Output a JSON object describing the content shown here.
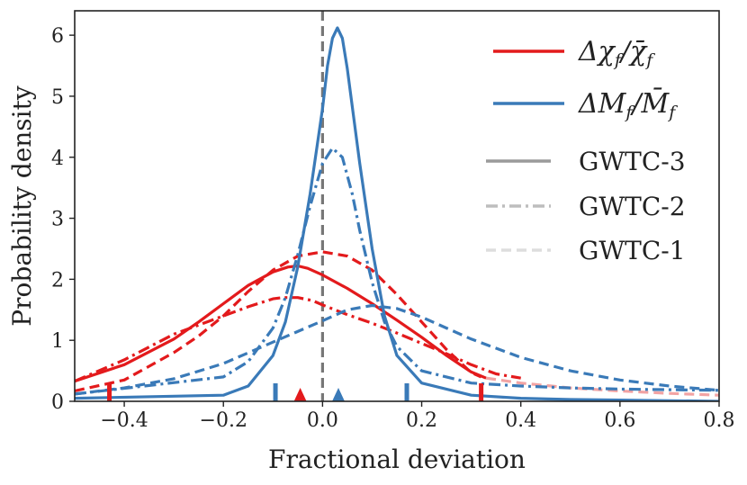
{
  "chart_data": {
    "type": "line",
    "xlabel": "Fractional deviation",
    "ylabel": "Probability density",
    "xlim": [
      -0.5,
      0.8
    ],
    "ylim": [
      0,
      6.4
    ],
    "x_ticks": [
      -0.4,
      -0.2,
      0.0,
      0.2,
      0.4,
      0.6,
      0.8
    ],
    "x_tick_labels": [
      "−0.4",
      "−0.2",
      "0.0",
      "0.2",
      "0.4",
      "0.6",
      "0.8"
    ],
    "y_ticks": [
      0,
      1,
      2,
      3,
      4,
      5,
      6
    ],
    "y_tick_labels": [
      "0",
      "1",
      "2",
      "3",
      "4",
      "5",
      "6"
    ],
    "reference_line_x": 0.0,
    "colors": {
      "chi": "#e31a1c",
      "mass": "#3a7ab8",
      "chi_faded": "#f2a3a3",
      "mass_faded": "#a9c8e2",
      "reference": "#777777"
    },
    "series": [
      {
        "name": "chi_f GWTC-3",
        "quantity": "chi",
        "catalog": "GWTC-3",
        "style": "solid",
        "x": [
          -0.5,
          -0.4,
          -0.3,
          -0.25,
          -0.2,
          -0.15,
          -0.1,
          -0.07,
          -0.05,
          -0.03,
          0.0,
          0.05,
          0.1,
          0.15,
          0.2,
          0.25,
          0.3,
          0.33
        ],
        "y": [
          0.33,
          0.6,
          1.02,
          1.3,
          1.6,
          1.9,
          2.12,
          2.2,
          2.22,
          2.18,
          2.07,
          1.85,
          1.6,
          1.33,
          1.05,
          0.75,
          0.48,
          0.38
        ]
      },
      {
        "name": "chi_f GWTC-2",
        "quantity": "chi",
        "catalog": "GWTC-2",
        "style": "dashdot",
        "x": [
          -0.5,
          -0.4,
          -0.3,
          -0.2,
          -0.15,
          -0.1,
          -0.08,
          -0.05,
          -0.02,
          0.0,
          0.05,
          0.1,
          0.15,
          0.2,
          0.25,
          0.3,
          0.35,
          0.4
        ],
        "y": [
          0.33,
          0.68,
          1.1,
          1.4,
          1.55,
          1.68,
          1.7,
          1.7,
          1.65,
          1.58,
          1.42,
          1.28,
          1.12,
          0.95,
          0.78,
          0.6,
          0.45,
          0.38
        ]
      },
      {
        "name": "chi_f GWTC-1",
        "quantity": "chi",
        "catalog": "GWTC-1",
        "style": "dashed",
        "x": [
          -0.5,
          -0.4,
          -0.3,
          -0.25,
          -0.2,
          -0.15,
          -0.1,
          -0.05,
          0.0,
          0.05,
          0.1,
          0.15,
          0.2,
          0.25,
          0.3,
          0.32
        ],
        "y": [
          0.17,
          0.35,
          0.8,
          1.07,
          1.4,
          1.8,
          2.15,
          2.38,
          2.45,
          2.38,
          2.15,
          1.75,
          1.3,
          0.85,
          0.47,
          0.4
        ]
      },
      {
        "name": "chi_f tail",
        "quantity": "chi",
        "catalog": "tail",
        "style": "dashed",
        "faded": true,
        "x": [
          0.33,
          0.4,
          0.5,
          0.6,
          0.7,
          0.8
        ],
        "y": [
          0.38,
          0.3,
          0.22,
          0.17,
          0.13,
          0.1
        ]
      },
      {
        "name": "M_f GWTC-3",
        "quantity": "mass",
        "catalog": "GWTC-3",
        "style": "solid",
        "x": [
          -0.5,
          -0.2,
          -0.15,
          -0.1,
          -0.075,
          -0.05,
          -0.025,
          0.0,
          0.01,
          0.02,
          0.03,
          0.04,
          0.05,
          0.075,
          0.1,
          0.125,
          0.15,
          0.2,
          0.3,
          0.4,
          0.5,
          0.6,
          0.7,
          0.8
        ],
        "y": [
          0.05,
          0.1,
          0.25,
          0.75,
          1.3,
          2.2,
          3.4,
          4.8,
          5.5,
          5.95,
          6.12,
          5.95,
          5.45,
          3.9,
          2.5,
          1.4,
          0.75,
          0.3,
          0.1,
          0.05,
          0.03,
          0.02,
          0.01,
          0.0
        ]
      },
      {
        "name": "M_f GWTC-2",
        "quantity": "mass",
        "catalog": "GWTC-2",
        "style": "dashdot",
        "x": [
          -0.5,
          -0.2,
          -0.15,
          -0.1,
          -0.075,
          -0.05,
          -0.025,
          0.0,
          0.02,
          0.04,
          0.06,
          0.075,
          0.1,
          0.125,
          0.15,
          0.2,
          0.3,
          0.4,
          0.5,
          0.6,
          0.7,
          0.8
        ],
        "y": [
          0.12,
          0.4,
          0.65,
          1.2,
          1.7,
          2.4,
          3.2,
          3.9,
          4.15,
          4.0,
          3.4,
          2.8,
          1.95,
          1.3,
          0.9,
          0.5,
          0.3,
          0.25,
          0.22,
          0.2,
          0.19,
          0.18
        ]
      },
      {
        "name": "M_f GWTC-1",
        "quantity": "mass",
        "catalog": "GWTC-1",
        "style": "dashed",
        "x": [
          -0.5,
          -0.4,
          -0.3,
          -0.2,
          -0.1,
          0.0,
          0.05,
          0.1,
          0.15,
          0.2,
          0.25,
          0.3,
          0.4,
          0.5,
          0.6,
          0.7,
          0.8
        ],
        "y": [
          0.12,
          0.22,
          0.37,
          0.62,
          0.97,
          1.32,
          1.5,
          1.57,
          1.52,
          1.38,
          1.2,
          1.02,
          0.72,
          0.5,
          0.35,
          0.25,
          0.18
        ]
      }
    ],
    "markers": [
      {
        "type": "bar",
        "quantity": "chi",
        "x": -0.43
      },
      {
        "type": "bar",
        "quantity": "chi",
        "x": 0.32
      },
      {
        "type": "bar",
        "quantity": "mass",
        "x": -0.095
      },
      {
        "type": "bar",
        "quantity": "mass",
        "x": 0.17
      },
      {
        "type": "triangle",
        "quantity": "chi",
        "x": -0.045
      },
      {
        "type": "triangle",
        "quantity": "mass",
        "x": 0.032
      }
    ],
    "legend": {
      "placement": "top-right",
      "quantity_entries": [
        {
          "quantity": "chi",
          "prefix": "Δχ",
          "sub": "f",
          "slash": "/",
          "denom": "χ̄",
          "denom_sub": "f"
        },
        {
          "quantity": "mass",
          "prefix": "ΔM",
          "sub": "f",
          "slash": "/",
          "denom": "M̄",
          "denom_sub": "f"
        }
      ],
      "catalog_entries": [
        {
          "label": "GWTC-3",
          "style": "solid"
        },
        {
          "label": "GWTC-2",
          "style": "dashdot"
        },
        {
          "label": "GWTC-1",
          "style": "dashed"
        }
      ]
    }
  }
}
